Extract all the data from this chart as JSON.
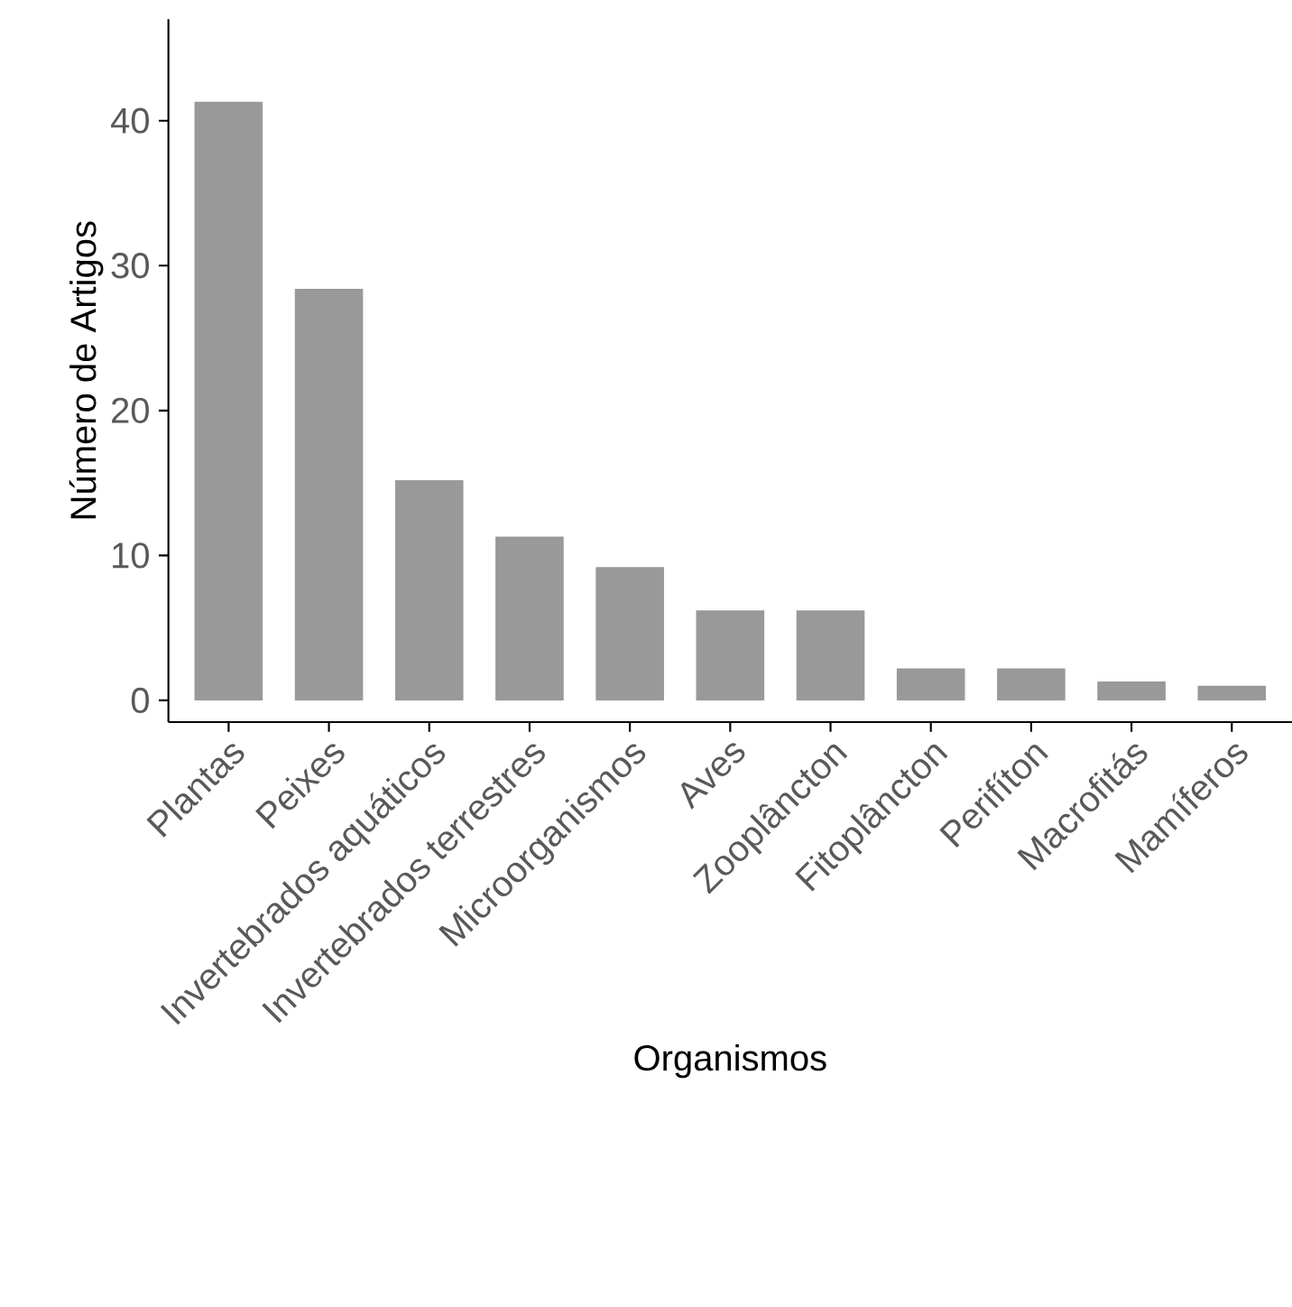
{
  "chart_data": {
    "type": "bar",
    "xlabel": "Organismos",
    "ylabel": "Número de Artigos",
    "categories": [
      "Plantas",
      "Peixes",
      "Invertebrados aquáticos",
      "Invertebrados terrestres",
      "Microorganismos",
      "Aves",
      "Zooplâncton",
      "Fitoplâncton",
      "Perifíton",
      "Macrofitás",
      "Mamíferos"
    ],
    "values": [
      41.3,
      28.4,
      15.2,
      11.3,
      9.2,
      6.2,
      6.2,
      2.2,
      2.2,
      1.3,
      1.0
    ],
    "color": "#999999",
    "ylim": [
      -1.5,
      47
    ],
    "yticks": [
      0,
      10,
      20,
      30,
      40
    ],
    "grid": false
  }
}
